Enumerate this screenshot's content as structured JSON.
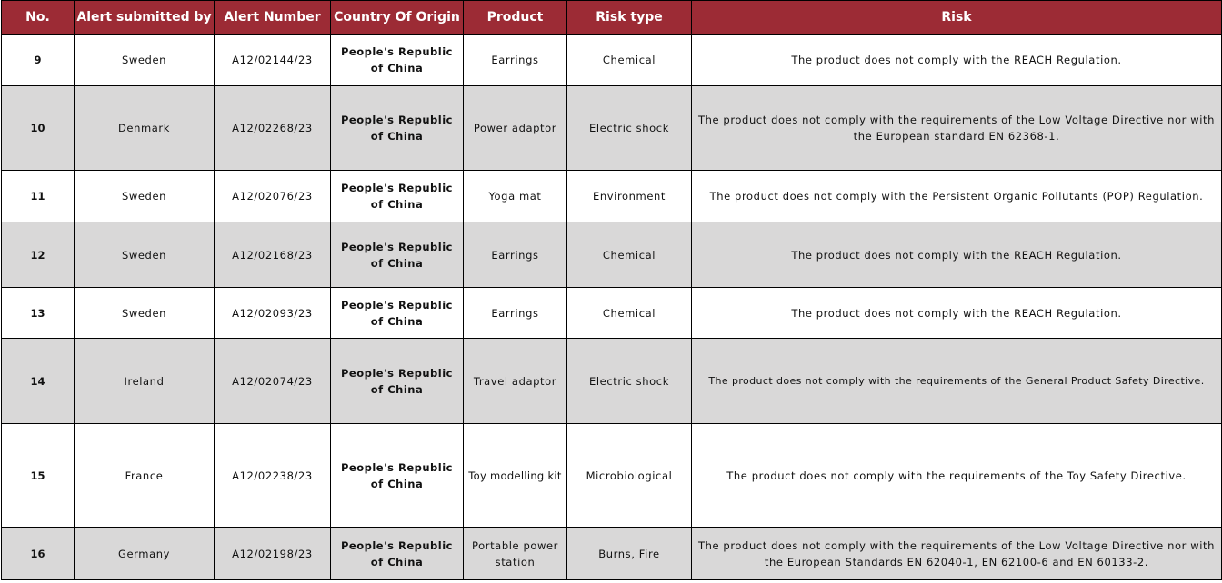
{
  "table": {
    "headers": {
      "no": "No.",
      "submitted_by": "Alert submitted by",
      "alert_number": "Alert Number",
      "country_of_origin": "Country Of Origin",
      "product": "Product",
      "risk_type": "Risk type",
      "risk": "Risk"
    },
    "rows": [
      {
        "no": "9",
        "submitted_by": "Sweden",
        "alert_number": "A12/02144/23",
        "country_of_origin": "People's Republic of China",
        "product": "Earrings",
        "risk_type": "Chemical",
        "risk": "The product does not comply with the REACH Regulation."
      },
      {
        "no": "10",
        "submitted_by": "Denmark",
        "alert_number": "A12/02268/23",
        "country_of_origin": "People's Republic of China",
        "product": "Power adaptor",
        "risk_type": "Electric shock",
        "risk": "The product does not comply with the requirements of the Low Voltage Directive nor with the European standard EN 62368-1."
      },
      {
        "no": "11",
        "submitted_by": "Sweden",
        "alert_number": "A12/02076/23",
        "country_of_origin": "People's Republic of China",
        "product": "Yoga mat",
        "risk_type": "Environment",
        "risk": "The product does not comply with the Persistent Organic Pollutants (POP) Regulation."
      },
      {
        "no": "12",
        "submitted_by": "Sweden",
        "alert_number": "A12/02168/23",
        "country_of_origin": "People's Republic of China",
        "product": "Earrings",
        "risk_type": "Chemical",
        "risk": "The product does not comply with the REACH Regulation."
      },
      {
        "no": "13",
        "submitted_by": "Sweden",
        "alert_number": "A12/02093/23",
        "country_of_origin": "People's Republic of China",
        "product": "Earrings",
        "risk_type": "Chemical",
        "risk": "The product does not comply with the REACH Regulation."
      },
      {
        "no": "14",
        "submitted_by": "Ireland",
        "alert_number": "A12/02074/23",
        "country_of_origin": "People's Republic of China",
        "product": "Travel adaptor",
        "risk_type": "Electric shock",
        "risk": "The product does not comply with the requirements of the General Product Safety Directive."
      },
      {
        "no": "15",
        "submitted_by": "France",
        "alert_number": "A12/02238/23",
        "country_of_origin": "People's Republic of China",
        "product": "Toy modelling kit",
        "risk_type": "Microbiological",
        "risk": "The product does not comply with the requirements of the Toy Safety Directive."
      },
      {
        "no": "16",
        "submitted_by": "Germany",
        "alert_number": "A12/02198/23",
        "country_of_origin": "People's Republic of China",
        "product": "Portable power station",
        "risk_type": "Burns, Fire",
        "risk": "The product does not comply with the requirements of the Low Voltage Directive nor with the European Standards EN 62040-1, EN 62100-6 and EN 60133-2."
      }
    ]
  },
  "colors": {
    "header_background": "#9c2b35",
    "header_text": "#ffffff",
    "shaded_row": "#d9d8d8"
  }
}
